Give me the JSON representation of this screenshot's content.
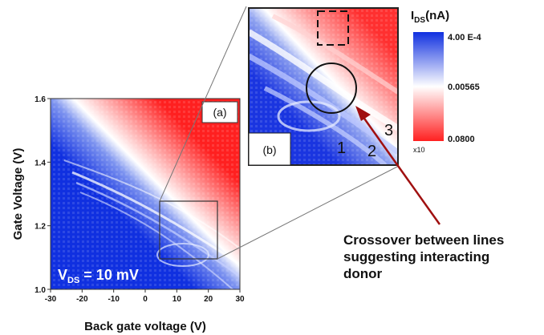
{
  "chart_data": [
    {
      "type": "heatmap",
      "panel_label": "(a)",
      "xlabel": "Back gate voltage (V)",
      "ylabel": "Gate Voltage (V)",
      "x_ticks": [
        "-30",
        "-20",
        "-10",
        "0",
        "10",
        "20",
        "30"
      ],
      "y_ticks": [
        "1.0",
        "1.2",
        "1.4",
        "1.6"
      ],
      "xlim": [
        -30,
        30
      ],
      "ylim": [
        1.0,
        1.6
      ],
      "annotation_main": "V",
      "annotation_sub": "DS",
      "annotation_tail": " = 10 mV",
      "colormap": [
        "#1030e0",
        "#ffffff",
        "#ff2020"
      ]
    },
    {
      "type": "heatmap",
      "panel_label": "(b)",
      "line_labels": [
        "1",
        "2",
        "3"
      ],
      "colorbar_title_main": "I",
      "colorbar_title_sub": "DS",
      "colorbar_title_tail": "(nA)",
      "colorbar_ticks": [
        "4.00 E-4",
        "0.00565",
        "0.0800"
      ],
      "colorbar_multiplier": "x10"
    }
  ],
  "callout": {
    "lines": [
      "Crossover between lines",
      "suggesting interacting",
      "donor"
    ]
  },
  "colors": {
    "blue": "#1030e0",
    "white": "#ffffff",
    "red": "#ff2020",
    "arrow": "#a01010"
  }
}
